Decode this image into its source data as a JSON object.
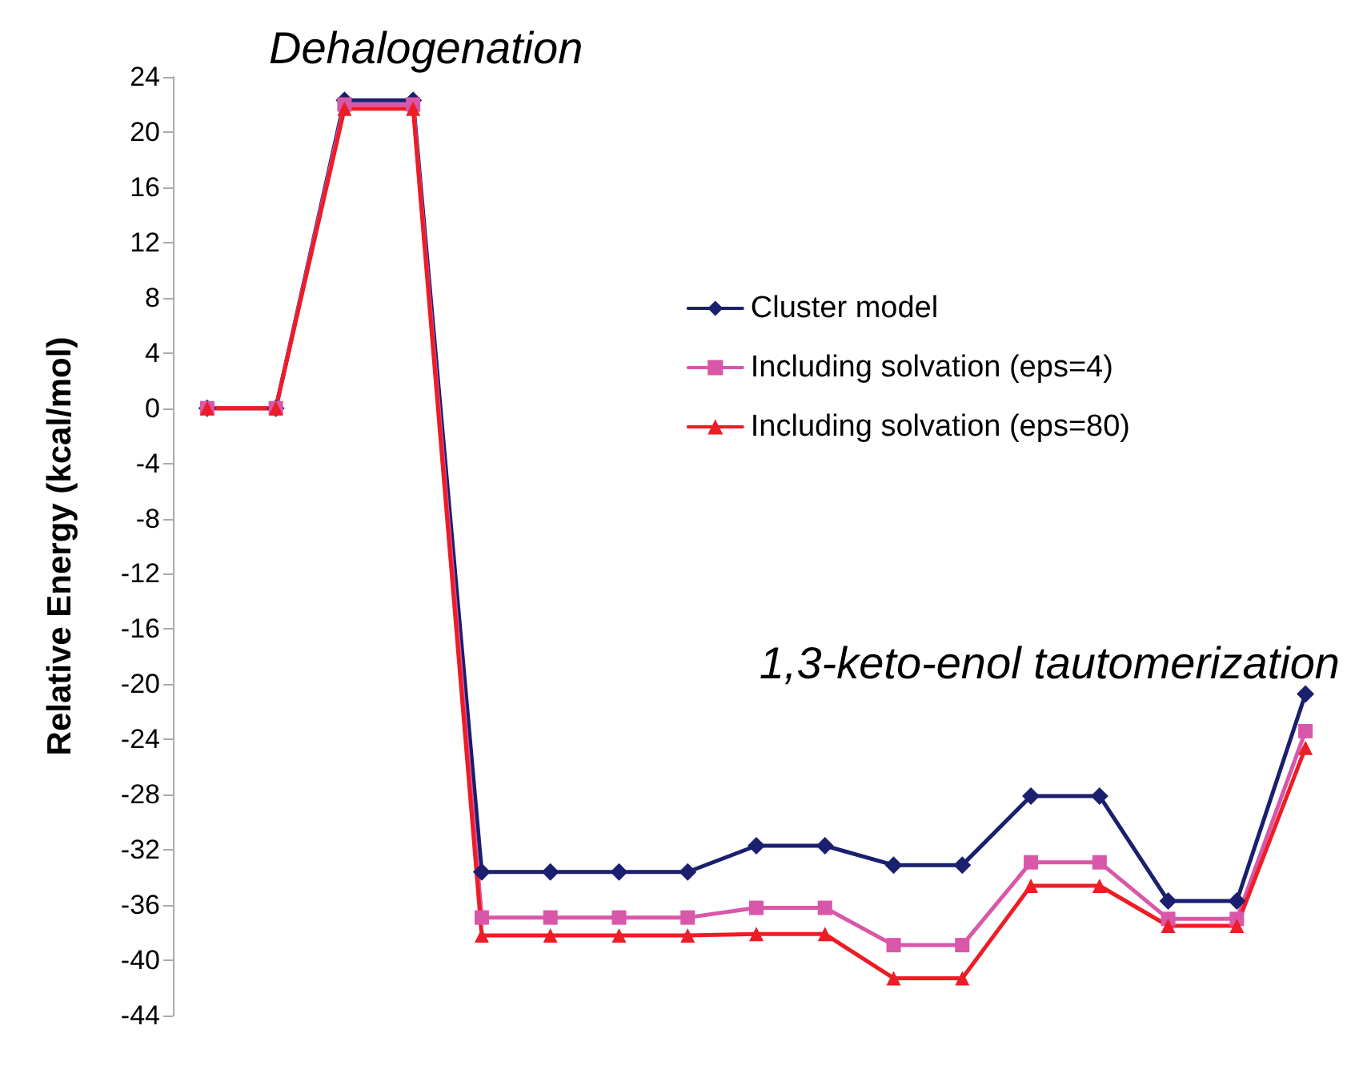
{
  "chart_data": {
    "type": "line",
    "ylabel": "Relative Energy (kcal/mol)",
    "annotations": [
      "Dehalogenation",
      "1,3-keto-enol tautomerization"
    ],
    "categories": [
      null,
      null,
      null,
      null,
      null,
      null,
      null,
      null,
      null,
      null,
      null,
      null,
      null,
      null,
      null,
      null,
      null
    ],
    "series": [
      {
        "name": "Cluster model",
        "color": "#1a1f6e",
        "marker": "diamond",
        "values": [
          0,
          0,
          22.3,
          22.3,
          -33.6,
          -33.6,
          -33.6,
          -33.6,
          -31.7,
          -31.7,
          -33.1,
          -33.1,
          -28.1,
          -28.1,
          -35.7,
          -35.7,
          -20.7
        ]
      },
      {
        "name": "Including solvation (eps=4)",
        "color": "#d957a8",
        "marker": "square",
        "values": [
          0,
          0,
          22.0,
          22.0,
          -36.9,
          -36.9,
          -36.9,
          -36.9,
          -36.2,
          -36.2,
          -38.9,
          -38.9,
          -32.9,
          -32.9,
          -37.0,
          -37.0,
          -23.4
        ]
      },
      {
        "name": "Including solvation (eps=80)",
        "color": "#ee1c25",
        "marker": "triangle",
        "values": [
          0,
          0,
          21.7,
          21.7,
          -38.2,
          -38.2,
          -38.2,
          -38.2,
          -38.1,
          -38.1,
          -41.3,
          -41.3,
          -34.6,
          -34.6,
          -37.5,
          -37.5,
          -24.6
        ]
      }
    ],
    "ylim": [
      -44,
      24
    ],
    "yticks": [
      -44,
      -40,
      -36,
      -32,
      -28,
      -24,
      -20,
      -16,
      -12,
      -8,
      -4,
      0,
      4,
      8,
      12,
      16,
      20,
      24
    ],
    "grid": false,
    "legend": "right",
    "line_style": "solid"
  }
}
